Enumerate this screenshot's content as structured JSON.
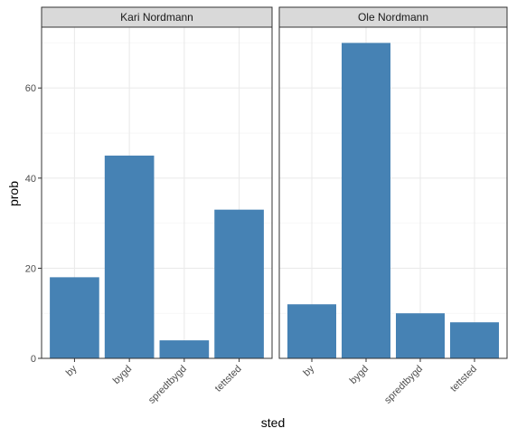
{
  "chart_data": {
    "type": "bar",
    "xlabel": "sted",
    "ylabel": "prob",
    "ylim": [
      0,
      73.5
    ],
    "yticks": [
      0,
      20,
      40,
      60
    ],
    "grid": true,
    "categories": [
      "by",
      "bygd",
      "spredtbygd",
      "tettsted"
    ],
    "bar_color": "#4682B4",
    "facets": [
      {
        "name": "Kari Nordmann",
        "values": [
          18,
          45,
          4,
          33
        ]
      },
      {
        "name": "Ole Nordmann",
        "values": [
          12,
          70,
          10,
          8
        ]
      }
    ]
  }
}
